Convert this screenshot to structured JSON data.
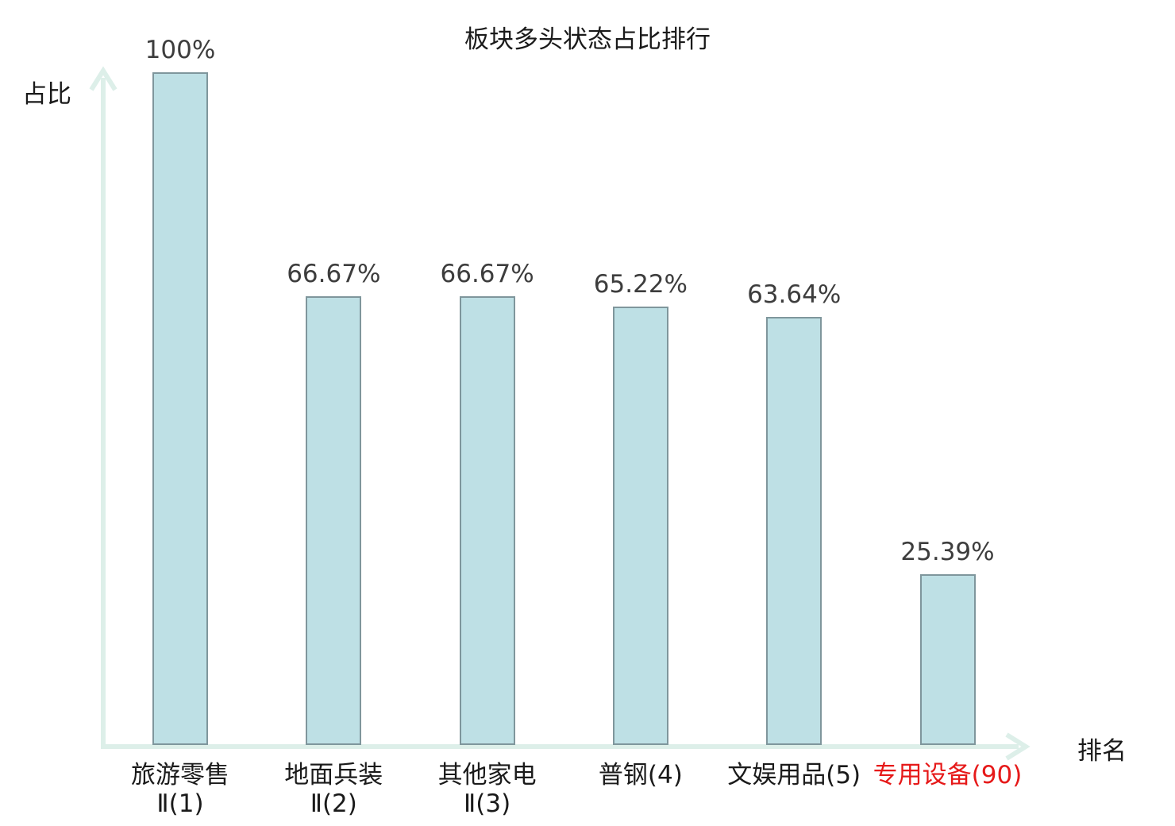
{
  "chart_data": {
    "type": "bar",
    "title": "板块多头状态占比排行",
    "xlabel": "排名",
    "ylabel": "占比",
    "ylim": [
      0,
      100
    ],
    "grid": false,
    "legend": null,
    "categories": [
      "旅游零售Ⅱ(1)",
      "地面兵装Ⅱ(2)",
      "其他家电Ⅱ(3)",
      "普钢(4)",
      "文娱用品(5)",
      "专用设备(90)"
    ],
    "category_lines": [
      [
        "旅游零售",
        "Ⅱ(1)"
      ],
      [
        "地面兵装",
        "Ⅱ(2)"
      ],
      [
        "其他家电",
        "Ⅱ(3)"
      ],
      [
        "普钢(4)"
      ],
      [
        "文娱用品(5)"
      ],
      [
        "专用设备(90)"
      ]
    ],
    "values": [
      100,
      66.67,
      66.67,
      65.22,
      63.64,
      25.39
    ],
    "value_labels": [
      "100%",
      "66.67%",
      "66.67%",
      "65.22%",
      "63.64%",
      "25.39%"
    ],
    "highlight_index": 5
  },
  "colors": {
    "background": "#ffffff",
    "bar_fill": "#bee0e5",
    "bar_border": "#7f969c",
    "axis": "#ddefe9",
    "title": "#1a1a1a",
    "category_label": "#1a1a1a",
    "value_label": "#3d3d3d",
    "highlight": "#e61919"
  }
}
